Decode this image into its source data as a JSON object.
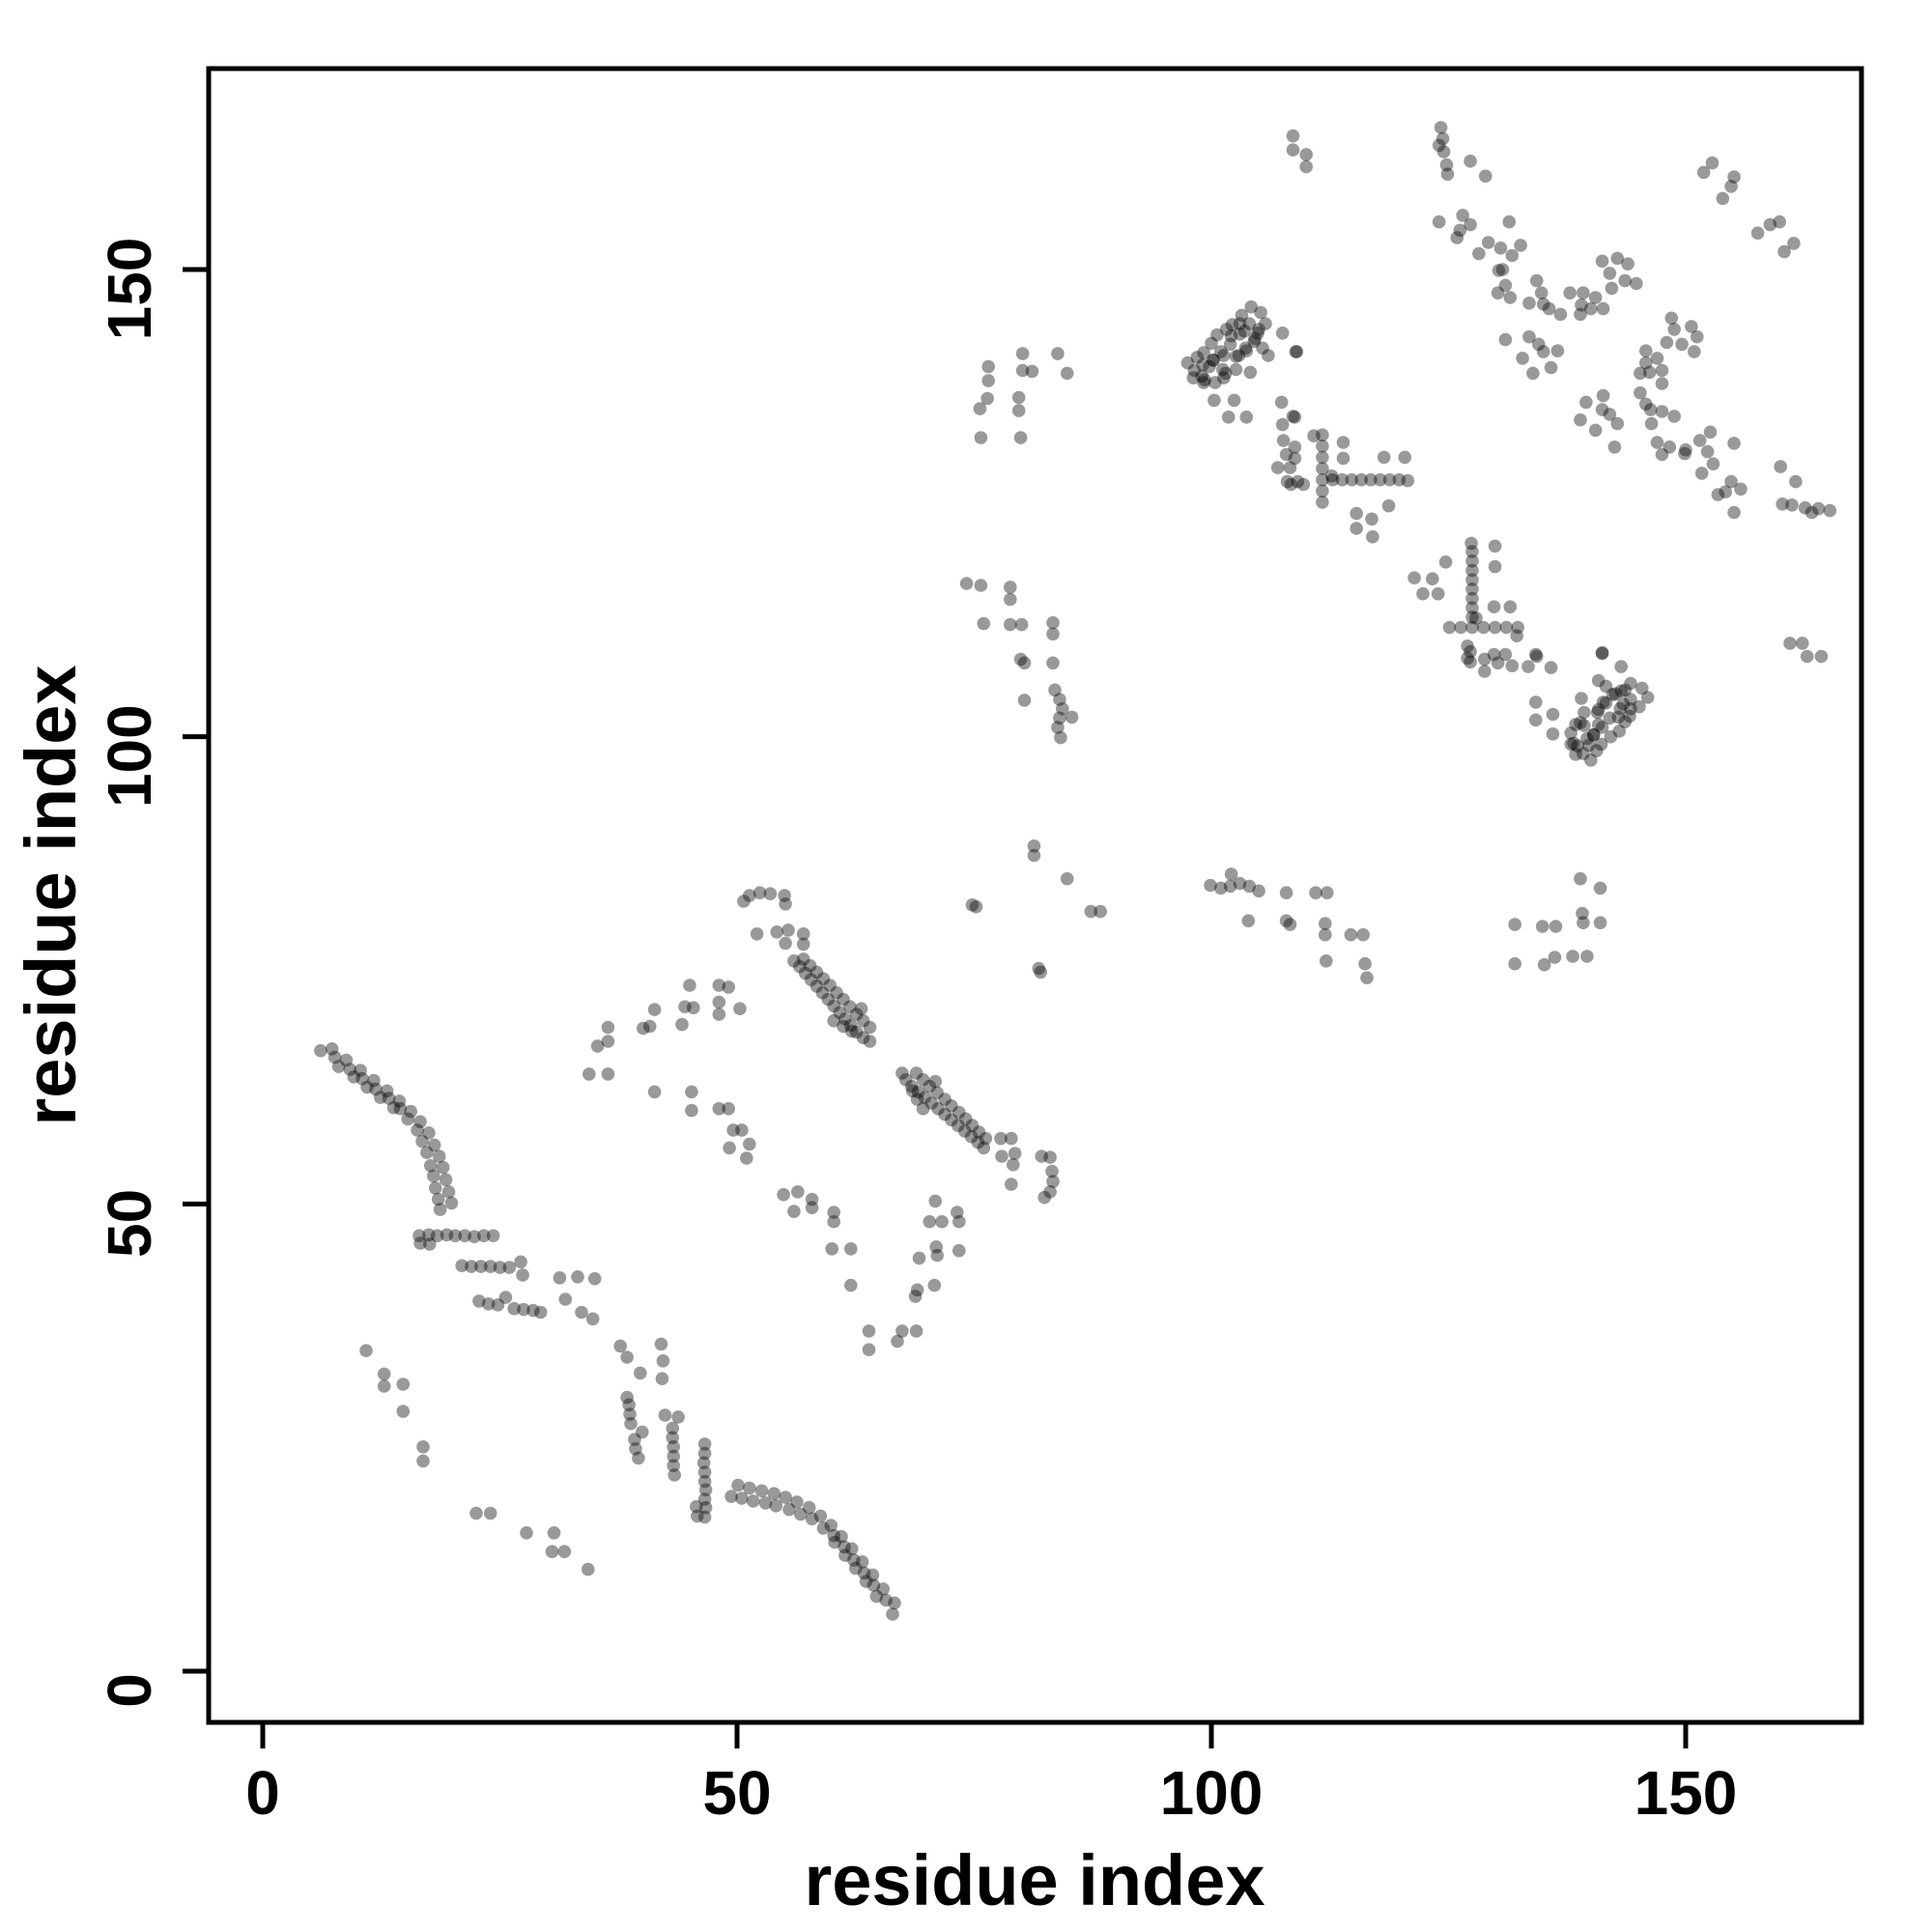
{
  "chart_data": {
    "type": "scatter",
    "title": "",
    "xlabel": "residue index",
    "ylabel": "residue index",
    "xlim": [
      -5.7,
      168.8
    ],
    "ylim": [
      -5.6,
      171.5
    ],
    "xticks": [
      0,
      50,
      100,
      150
    ],
    "yticks": [
      0,
      50,
      100,
      150
    ],
    "grid": false,
    "legend": null,
    "symmetric_contact_map": true,
    "marker": {
      "shape": "circle",
      "color": "#000000",
      "opacity": 0.4,
      "radius_px": 6.8
    },
    "axis_color": "#000000",
    "background": "#ffffff",
    "contacts": [
      [
        6.1,
        66.4
      ],
      [
        7.6,
        65.7
      ],
      [
        9.2,
        64.4
      ],
      [
        10.5,
        63.4
      ],
      [
        11.9,
        62.3
      ],
      [
        13.3,
        61.3
      ],
      [
        14.5,
        60.2
      ],
      [
        15.3,
        59.1
      ],
      [
        16.3,
        57.9
      ],
      [
        16.8,
        56.7
      ],
      [
        17.3,
        55.5
      ],
      [
        17.7,
        54.1
      ],
      [
        18.0,
        53.0
      ],
      [
        18.2,
        51.7
      ],
      [
        18.5,
        50.5
      ],
      [
        18.7,
        49.4
      ],
      [
        7.3,
        66.6
      ],
      [
        8.8,
        65.4
      ],
      [
        10.3,
        64.3
      ],
      [
        11.7,
        63.2
      ],
      [
        13.1,
        62.1
      ],
      [
        14.4,
        61.0
      ],
      [
        15.6,
        59.9
      ],
      [
        16.6,
        58.8
      ],
      [
        17.5,
        57.6
      ],
      [
        18.1,
        56.3
      ],
      [
        18.6,
        55.1
      ],
      [
        19.0,
        53.9
      ],
      [
        19.3,
        52.6
      ],
      [
        19.6,
        51.3
      ],
      [
        19.9,
        50.1
      ],
      [
        8.0,
        64.7
      ],
      [
        9.6,
        63.6
      ],
      [
        11.0,
        62.5
      ],
      [
        12.4,
        61.4
      ],
      [
        13.8,
        60.3
      ],
      [
        16.5,
        46.6
      ],
      [
        17.5,
        46.7
      ],
      [
        18.4,
        46.6
      ],
      [
        19.4,
        46.7
      ],
      [
        20.3,
        46.6
      ],
      [
        21.3,
        46.6
      ],
      [
        22.3,
        46.5
      ],
      [
        23.3,
        46.6
      ],
      [
        24.3,
        46.6
      ],
      [
        16.6,
        45.8
      ],
      [
        17.6,
        45.7
      ],
      [
        21.0,
        43.4
      ],
      [
        22.0,
        43.3
      ],
      [
        23.0,
        43.3
      ],
      [
        24.0,
        43.3
      ],
      [
        25.0,
        43.2
      ],
      [
        26.0,
        43.2
      ],
      [
        27.2,
        43.8
      ],
      [
        27.4,
        42.4
      ],
      [
        22.8,
        39.6
      ],
      [
        23.8,
        39.3
      ],
      [
        24.8,
        39.2
      ],
      [
        25.6,
        40.0
      ],
      [
        26.5,
        38.8
      ],
      [
        27.5,
        38.7
      ],
      [
        28.5,
        38.6
      ],
      [
        29.3,
        38.4
      ],
      [
        31.3,
        42.1
      ],
      [
        33.2,
        42.2
      ],
      [
        35.0,
        42.0
      ],
      [
        33.6,
        38.4
      ],
      [
        34.8,
        37.7
      ],
      [
        31.9,
        39.8
      ],
      [
        16.9,
        22.5
      ],
      [
        16.9,
        24.0
      ],
      [
        14.8,
        27.8
      ],
      [
        14.8,
        30.7
      ],
      [
        12.8,
        30.5
      ],
      [
        12.8,
        31.8
      ],
      [
        10.9,
        34.3
      ],
      [
        35.3,
        66.9
      ],
      [
        36.4,
        68.9
      ],
      [
        36.4,
        67.4
      ],
      [
        34.4,
        63.9
      ],
      [
        36.4,
        63.9
      ],
      [
        40.1,
        68.8
      ],
      [
        40.8,
        69.0
      ],
      [
        41.3,
        70.8
      ],
      [
        44.5,
        71.1
      ],
      [
        45.4,
        71.0
      ],
      [
        44.2,
        69.2
      ],
      [
        45.0,
        73.4
      ],
      [
        48.1,
        73.4
      ],
      [
        49.1,
        73.2
      ],
      [
        48.1,
        71.6
      ],
      [
        48.1,
        70.3
      ],
      [
        50.3,
        70.9
      ],
      [
        41.3,
        62.0
      ],
      [
        45.2,
        62.0
      ],
      [
        45.2,
        60.0
      ],
      [
        48.1,
        60.2
      ],
      [
        49.1,
        60.2
      ],
      [
        49.6,
        57.9
      ],
      [
        50.5,
        57.9
      ],
      [
        49.2,
        56.0
      ],
      [
        51.0,
        54.9
      ],
      [
        51.3,
        56.4
      ],
      [
        56.0,
        76.0
      ],
      [
        56.6,
        75.4
      ],
      [
        57.2,
        74.7
      ],
      [
        57.8,
        74.0
      ],
      [
        58.4,
        73.3
      ],
      [
        59.0,
        72.6
      ],
      [
        59.6,
        71.9
      ],
      [
        60.2,
        71.2
      ],
      [
        60.8,
        70.5
      ],
      [
        61.4,
        69.8
      ],
      [
        62.0,
        69.1
      ],
      [
        62.6,
        68.4
      ],
      [
        63.3,
        67.8
      ],
      [
        64.0,
        67.4
      ],
      [
        57.0,
        76.2
      ],
      [
        57.7,
        75.5
      ],
      [
        58.4,
        74.8
      ],
      [
        59.1,
        74.1
      ],
      [
        59.8,
        73.4
      ],
      [
        60.5,
        72.6
      ],
      [
        61.2,
        71.9
      ],
      [
        61.9,
        71.1
      ],
      [
        62.6,
        70.3
      ],
      [
        63.3,
        69.6
      ],
      [
        64.0,
        68.9
      ],
      [
        60.2,
        69.6
      ],
      [
        61.2,
        69.0
      ],
      [
        62.1,
        68.5
      ],
      [
        63.1,
        70.9
      ],
      [
        51.3,
        83.0
      ],
      [
        52.4,
        83.3
      ],
      [
        53.5,
        83.2
      ],
      [
        55.0,
        83.0
      ],
      [
        55.1,
        82.1
      ],
      [
        50.7,
        82.4
      ],
      [
        52.1,
        78.9
      ],
      [
        54.2,
        79.1
      ],
      [
        55.4,
        79.3
      ],
      [
        57.0,
        78.9
      ],
      [
        55.1,
        77.9
      ],
      [
        57.0,
        77.8
      ],
      [
        74.8,
        82.0
      ],
      [
        81.3,
        88.3
      ],
      [
        81.3,
        87.3
      ],
      [
        75.2,
        81.8
      ],
      [
        74.2,
        116.4
      ],
      [
        75.7,
        116.2
      ],
      [
        78.8,
        116.0
      ],
      [
        78.8,
        114.7
      ],
      [
        76.0,
        112.1
      ],
      [
        78.8,
        112.0
      ],
      [
        80.0,
        112.0
      ],
      [
        83.3,
        112.2
      ],
      [
        83.3,
        111.0
      ],
      [
        80.3,
        107.9
      ],
      [
        83.3,
        107.9
      ],
      [
        79.9,
        108.3
      ],
      [
        80.3,
        103.9
      ],
      [
        83.5,
        105.0
      ],
      [
        84.0,
        104.0
      ],
      [
        84.3,
        103.0
      ],
      [
        84.0,
        102.0
      ],
      [
        83.8,
        101.0
      ],
      [
        85.3,
        102.1
      ],
      [
        84.1,
        99.9
      ],
      [
        76.5,
        139.6
      ],
      [
        76.5,
        138.1
      ],
      [
        80.1,
        141.0
      ],
      [
        83.8,
        141.0
      ],
      [
        80.1,
        139.2
      ],
      [
        81.1,
        139.1
      ],
      [
        76.4,
        136.2
      ],
      [
        75.6,
        135.1
      ],
      [
        79.7,
        136.3
      ],
      [
        79.7,
        134.9
      ],
      [
        75.7,
        132.0
      ],
      [
        79.9,
        132.0
      ],
      [
        84.8,
        138.9
      ],
      [
        97.5,
        140.0
      ],
      [
        98.2,
        139.2
      ],
      [
        98.5,
        140.6
      ],
      [
        99.0,
        138.6
      ],
      [
        99.2,
        141.1
      ],
      [
        99.8,
        139.6
      ],
      [
        100.0,
        142.1
      ],
      [
        100.2,
        140.3
      ],
      [
        100.6,
        143.0
      ],
      [
        101.0,
        141.2
      ],
      [
        101.2,
        139.3
      ],
      [
        101.6,
        143.6
      ],
      [
        102.0,
        142.0
      ],
      [
        102.2,
        144.1
      ],
      [
        102.6,
        140.7
      ],
      [
        103.0,
        143.1
      ],
      [
        103.2,
        145.1
      ],
      [
        103.6,
        141.6
      ],
      [
        104.0,
        144.2
      ],
      [
        104.2,
        146.0
      ],
      [
        104.6,
        142.6
      ],
      [
        105.0,
        143.6
      ],
      [
        105.2,
        145.4
      ],
      [
        105.7,
        144.2
      ],
      [
        99.3,
        138.2
      ],
      [
        101.3,
        138.4
      ],
      [
        107.5,
        143.2
      ],
      [
        100.3,
        136.0
      ],
      [
        102.4,
        136.0
      ],
      [
        107.4,
        135.8
      ],
      [
        108.9,
        141.2
      ],
      [
        107.5,
        133.4
      ],
      [
        107.6,
        131.7
      ],
      [
        107.9,
        130.2
      ],
      [
        108.6,
        134.3
      ],
      [
        108.6,
        164.3
      ],
      [
        108.6,
        162.8
      ],
      [
        112.8,
        127.5
      ],
      [
        113.8,
        127.5
      ],
      [
        114.8,
        127.5
      ],
      [
        115.8,
        127.5
      ],
      [
        116.8,
        127.5
      ],
      [
        117.8,
        127.5
      ],
      [
        118.8,
        127.5
      ],
      [
        119.8,
        127.5
      ],
      [
        120.7,
        127.4
      ],
      [
        111.7,
        132.3
      ],
      [
        111.7,
        131.1
      ],
      [
        111.7,
        129.9
      ],
      [
        111.7,
        128.7
      ],
      [
        111.7,
        127.5
      ],
      [
        111.7,
        126.3
      ],
      [
        111.7,
        125.1
      ],
      [
        112.7,
        127.9
      ],
      [
        110.8,
        132.2
      ],
      [
        107.0,
        128.8
      ],
      [
        108.3,
        128.8
      ],
      [
        108.0,
        127.3
      ],
      [
        109.1,
        127.3
      ],
      [
        113.9,
        131.5
      ],
      [
        113.9,
        129.8
      ],
      [
        118.2,
        129.9
      ],
      [
        120.4,
        129.9
      ],
      [
        115.3,
        123.9
      ],
      [
        115.3,
        122.3
      ],
      [
        118.7,
        124.7
      ],
      [
        117.0,
        121.4
      ],
      [
        116.9,
        123.3
      ],
      [
        124.2,
        165.2
      ],
      [
        124.4,
        164.0
      ],
      [
        124.5,
        162.6
      ],
      [
        124.8,
        161.2
      ],
      [
        124.9,
        160.2
      ],
      [
        124.0,
        163.3
      ],
      [
        127.3,
        161.6
      ],
      [
        128.9,
        160.0
      ],
      [
        124.0,
        155.1
      ],
      [
        126.5,
        155.8
      ],
      [
        127.3,
        154.8
      ],
      [
        126.2,
        154.2
      ],
      [
        131.4,
        155.1
      ],
      [
        125.9,
        153.4
      ],
      [
        128.2,
        151.7
      ],
      [
        130.5,
        152.3
      ],
      [
        131.7,
        151.5
      ],
      [
        130.7,
        150.0
      ],
      [
        131.0,
        148.3
      ],
      [
        130.2,
        147.5
      ],
      [
        131.5,
        147.0
      ],
      [
        132.6,
        152.6
      ],
      [
        129.2,
        152.9
      ],
      [
        130.3,
        149.9
      ],
      [
        133.5,
        146.4
      ],
      [
        134.3,
        148.8
      ],
      [
        134.8,
        147.5
      ],
      [
        135.0,
        146.3
      ],
      [
        135.6,
        145.8
      ],
      [
        136.8,
        145.2
      ],
      [
        137.8,
        147.5
      ],
      [
        139.2,
        147.5
      ],
      [
        140.5,
        147.0
      ],
      [
        139.0,
        146.2
      ],
      [
        141.2,
        150.9
      ],
      [
        142.8,
        151.2
      ],
      [
        143.9,
        150.6
      ],
      [
        141.3,
        145.8
      ],
      [
        140.0,
        145.8
      ],
      [
        138.9,
        145.2
      ],
      [
        142.2,
        148.0
      ],
      [
        143.6,
        148.8
      ],
      [
        144.8,
        148.5
      ],
      [
        142.0,
        149.6
      ],
      [
        151.9,
        160.4
      ],
      [
        152.8,
        161.4
      ],
      [
        157.6,
        153.9
      ],
      [
        158.9,
        154.8
      ],
      [
        159.9,
        155.1
      ],
      [
        131.0,
        142.5
      ],
      [
        133.5,
        142.8
      ],
      [
        134.5,
        142.0
      ],
      [
        135.0,
        141.2
      ],
      [
        132.8,
        140.5
      ],
      [
        133.9,
        138.9
      ],
      [
        135.8,
        139.5
      ],
      [
        136.5,
        141.3
      ],
      [
        137.9,
        100.4
      ],
      [
        137.9,
        99.2
      ],
      [
        138.4,
        98.1
      ],
      [
        138.9,
        101.5
      ],
      [
        139.3,
        102.6
      ],
      [
        139.0,
        104.1
      ],
      [
        139.8,
        99.1
      ],
      [
        140.3,
        100.2
      ],
      [
        140.8,
        101.3
      ],
      [
        140.8,
        102.9
      ],
      [
        141.3,
        103.7
      ],
      [
        141.6,
        105.4
      ],
      [
        140.8,
        106.0
      ],
      [
        142.3,
        104.5
      ],
      [
        143.2,
        104.9
      ],
      [
        143.4,
        103.5
      ],
      [
        142.9,
        102.1
      ],
      [
        144.2,
        103.0
      ],
      [
        127.0,
        109.7
      ],
      [
        127.0,
        108.4
      ],
      [
        129.8,
        108.8
      ],
      [
        131.0,
        108.8
      ],
      [
        134.2,
        108.8
      ],
      [
        141.2,
        109.0
      ],
      [
        161.0,
        110.0
      ],
      [
        162.3,
        110.0
      ],
      [
        134.2,
        103.7
      ],
      [
        134.2,
        101.8
      ],
      [
        84.8,
        84.8
      ]
    ]
  },
  "notes": {
    "visible_text": [
      "residue index",
      "residue index",
      "0",
      "50",
      "100",
      "150"
    ]
  }
}
